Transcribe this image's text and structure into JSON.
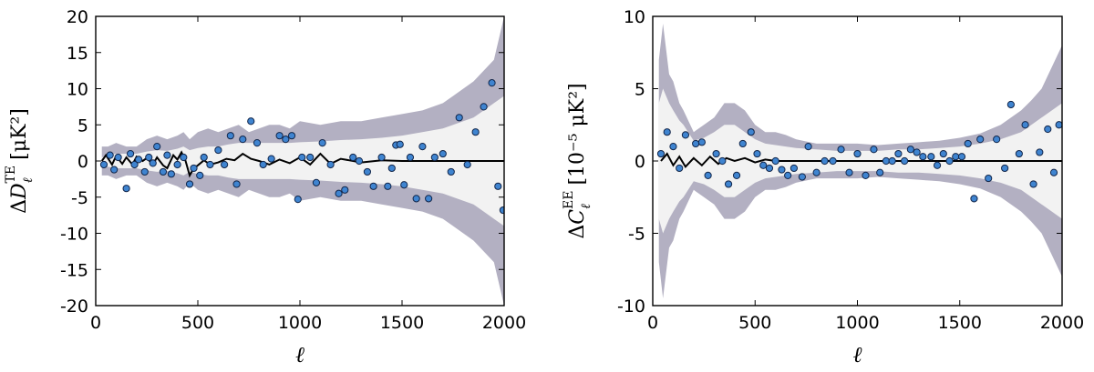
{
  "chart_data": [
    {
      "type": "scatter",
      "xlabel": "ℓ",
      "ylabel": {
        "delta": "Δ",
        "symbol": "D",
        "sub": "ℓ",
        "sup": "TE",
        "unit": "[μK²]"
      },
      "xlim": [
        0,
        2000
      ],
      "ylim": [
        -20,
        20
      ],
      "xticks": [
        0,
        500,
        1000,
        1500,
        2000
      ],
      "yticks": [
        -20,
        -15,
        -10,
        -5,
        0,
        5,
        10,
        15,
        20
      ],
      "colors": {
        "outer_band": "#b3b0c2",
        "inner_band": "#f2f2f2",
        "points": "#3f84d0",
        "point_edge": "#12264a",
        "model_line": "#000000"
      },
      "band_x": [
        30,
        60,
        100,
        150,
        200,
        250,
        300,
        350,
        400,
        430,
        460,
        500,
        550,
        600,
        650,
        700,
        750,
        800,
        850,
        900,
        950,
        1000,
        1100,
        1200,
        1300,
        1400,
        1500,
        1600,
        1700,
        1750,
        1800,
        1850,
        1900,
        1950,
        2000
      ],
      "band_outer": [
        2.0,
        2.0,
        2.5,
        2.0,
        2.0,
        3.0,
        3.5,
        3.0,
        3.5,
        4.0,
        3.0,
        4.0,
        4.5,
        4.0,
        4.5,
        5.0,
        4.0,
        4.5,
        5.0,
        5.0,
        4.5,
        5.5,
        5.0,
        5.5,
        5.5,
        6.0,
        6.5,
        7.0,
        8.0,
        9.0,
        10.0,
        11.0,
        12.5,
        14.0,
        20.0
      ],
      "band_inner": [
        0.5,
        0.8,
        1.0,
        1.0,
        1.0,
        1.3,
        1.5,
        1.4,
        1.7,
        2.0,
        1.5,
        1.8,
        2.0,
        2.0,
        2.3,
        2.5,
        2.5,
        2.5,
        2.5,
        2.5,
        2.5,
        2.6,
        2.7,
        2.9,
        3.0,
        3.2,
        3.5,
        4.0,
        4.5,
        5.0,
        5.5,
        6.0,
        7.0,
        8.0,
        9.0
      ],
      "model_x": [
        30,
        50,
        80,
        100,
        130,
        150,
        180,
        200,
        230,
        250,
        280,
        300,
        330,
        350,
        380,
        400,
        420,
        440,
        460,
        480,
        500,
        530,
        560,
        600,
        640,
        680,
        720,
        760,
        800,
        850,
        900,
        950,
        1000,
        1050,
        1100,
        1150,
        1200,
        1300,
        1400,
        1500,
        1600,
        1800,
        2000
      ],
      "model_y": [
        0.0,
        0.8,
        -0.5,
        0.7,
        -0.4,
        0.5,
        -0.5,
        0.6,
        0.0,
        0.4,
        -0.5,
        0.5,
        -0.6,
        -1.0,
        0.8,
        0.2,
        1.2,
        0.0,
        -2.0,
        -1.0,
        -0.6,
        0.1,
        -0.5,
        -0.2,
        0.3,
        0.1,
        1.0,
        0.3,
        0.0,
        -0.5,
        0.2,
        -0.3,
        0.5,
        -0.5,
        1.0,
        -0.4,
        0.3,
        -0.2,
        0.1,
        0.0,
        0.0,
        0.0,
        0.0
      ],
      "points_x": [
        40,
        70,
        90,
        110,
        150,
        170,
        190,
        210,
        240,
        260,
        280,
        300,
        330,
        350,
        370,
        400,
        430,
        460,
        480,
        510,
        530,
        560,
        600,
        630,
        660,
        690,
        720,
        760,
        790,
        820,
        860,
        900,
        930,
        960,
        990,
        1010,
        1050,
        1080,
        1110,
        1150,
        1190,
        1220,
        1260,
        1290,
        1330,
        1360,
        1400,
        1430,
        1450,
        1470,
        1490,
        1510,
        1540,
        1570,
        1600,
        1630,
        1660,
        1700,
        1740,
        1780,
        1820,
        1860,
        1900,
        1940,
        1970,
        1995
      ],
      "points_y": [
        -0.5,
        0.8,
        -1.2,
        0.5,
        -3.8,
        1.0,
        -0.5,
        0.2,
        -1.5,
        0.5,
        -0.3,
        2.0,
        -1.5,
        0.8,
        -1.8,
        -0.5,
        0.5,
        -3.2,
        -1.0,
        -2.0,
        0.5,
        -0.5,
        1.5,
        -0.5,
        3.5,
        -3.2,
        3.0,
        5.5,
        2.5,
        -0.5,
        0.3,
        3.5,
        3.0,
        3.5,
        -5.3,
        0.5,
        0.5,
        -3.0,
        2.5,
        -0.5,
        -4.5,
        -4.0,
        0.5,
        0.0,
        -1.5,
        -3.5,
        0.5,
        -3.5,
        -1.0,
        2.2,
        2.3,
        -3.3,
        0.5,
        -5.2,
        2.0,
        -5.2,
        0.5,
        1.0,
        -1.5,
        6.0,
        -0.5,
        4.0,
        7.5,
        10.8,
        -3.5,
        -6.8
      ]
    },
    {
      "type": "scatter",
      "xlabel": "ℓ",
      "ylabel": {
        "delta": "Δ",
        "symbol": "C",
        "sub": "ℓ",
        "sup": "EE",
        "unit": "[10⁻⁵ μK²]"
      },
      "xlim": [
        0,
        2000
      ],
      "ylim": [
        -10,
        10
      ],
      "xticks": [
        0,
        500,
        1000,
        1500,
        2000
      ],
      "yticks": [
        -10,
        -5,
        0,
        5,
        10
      ],
      "colors": {
        "outer_band": "#b3b0c2",
        "inner_band": "#f2f2f2",
        "points": "#3f84d0",
        "point_edge": "#12264a",
        "model_line": "#000000"
      },
      "band_x": [
        30,
        50,
        80,
        100,
        130,
        150,
        200,
        250,
        300,
        350,
        400,
        450,
        500,
        550,
        600,
        650,
        700,
        800,
        900,
        1000,
        1100,
        1200,
        1300,
        1400,
        1500,
        1600,
        1700,
        1800,
        1850,
        1900,
        1950,
        2000
      ],
      "band_outer": [
        7.0,
        9.5,
        6.0,
        5.5,
        4.0,
        3.5,
        2.0,
        2.5,
        3.0,
        4.0,
        4.0,
        3.5,
        2.5,
        2.0,
        2.0,
        1.8,
        1.5,
        1.2,
        1.2,
        1.2,
        1.1,
        1.2,
        1.3,
        1.4,
        1.6,
        1.9,
        2.5,
        3.5,
        4.2,
        5.0,
        6.5,
        8.0
      ],
      "band_inner": [
        4.0,
        5.0,
        4.0,
        3.5,
        2.8,
        2.5,
        1.4,
        1.6,
        2.0,
        2.5,
        2.5,
        2.0,
        1.5,
        1.2,
        1.1,
        1.0,
        0.9,
        0.8,
        0.7,
        0.7,
        0.7,
        0.8,
        0.8,
        0.9,
        1.0,
        1.2,
        1.5,
        2.0,
        2.5,
        3.0,
        3.5,
        4.0
      ],
      "model_x": [
        40,
        70,
        100,
        130,
        160,
        200,
        240,
        280,
        320,
        360,
        400,
        450,
        500,
        550,
        600,
        700,
        800,
        900,
        1000,
        1200,
        1500,
        1800,
        2000
      ],
      "model_y": [
        0.0,
        0.5,
        -0.3,
        0.3,
        -0.4,
        0.2,
        -0.3,
        0.3,
        -0.2,
        0.2,
        0.0,
        0.2,
        -0.1,
        0.1,
        0.0,
        0.0,
        0.0,
        0.0,
        0.0,
        0.0,
        0.0,
        0.0,
        0.0
      ],
      "points_x": [
        40,
        70,
        100,
        130,
        160,
        210,
        240,
        270,
        310,
        340,
        370,
        410,
        440,
        480,
        510,
        540,
        570,
        600,
        630,
        660,
        690,
        730,
        760,
        800,
        840,
        880,
        920,
        960,
        1000,
        1040,
        1080,
        1110,
        1140,
        1170,
        1200,
        1230,
        1260,
        1290,
        1320,
        1360,
        1390,
        1420,
        1450,
        1480,
        1510,
        1540,
        1570,
        1600,
        1640,
        1680,
        1720,
        1750,
        1790,
        1820,
        1860,
        1890,
        1930,
        1960,
        1985
      ],
      "points_y": [
        0.5,
        2.0,
        1.0,
        -0.5,
        1.8,
        1.2,
        1.3,
        -1.0,
        0.5,
        0.0,
        -1.6,
        -1.0,
        1.2,
        2.0,
        0.5,
        -0.3,
        -0.5,
        0.0,
        -0.6,
        -1.0,
        -0.5,
        -1.1,
        1.0,
        -0.8,
        0.0,
        0.0,
        0.8,
        -0.8,
        0.5,
        -1.0,
        0.8,
        -0.8,
        0.0,
        0.0,
        0.5,
        0.0,
        0.8,
        0.6,
        0.3,
        0.3,
        -0.3,
        0.5,
        0.0,
        0.3,
        0.3,
        1.2,
        -2.6,
        1.5,
        -1.2,
        1.5,
        -0.5,
        3.9,
        0.5,
        2.5,
        -1.6,
        0.6,
        2.2,
        -0.8,
        2.5
      ]
    }
  ]
}
